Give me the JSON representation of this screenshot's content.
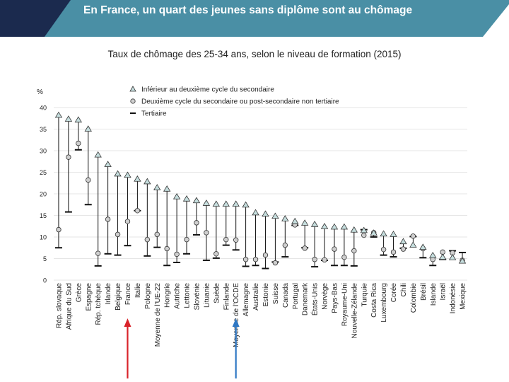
{
  "header": {
    "title": "En France, un quart des jeunes sans diplôme sont au chômage"
  },
  "colors": {
    "banner": "#4a8fa5",
    "banner_dark": "#1b2a4e",
    "triangle_fill": "#c6dede",
    "circle_fill": "#cfcfcf",
    "marker_stroke": "#333333",
    "arrow_france": "#d9232a",
    "arrow_oecd": "#2f78c4"
  },
  "chart_data": {
    "type": "scatter",
    "title": "Taux de chômage des 25-34 ans, selon le niveau de formation (2015)",
    "ylabel": "%",
    "ylim": [
      0,
      40
    ],
    "yticks": [
      0,
      5,
      10,
      15,
      20,
      25,
      30,
      35,
      40
    ],
    "legend": [
      "Inférieur au deuxième cycle du secondaire",
      "Deuxième cycle du secondaire ou post-secondaire non tertiaire",
      "Tertiaire"
    ],
    "highlighted": [
      "France",
      "Moyenne de l'OCDE"
    ],
    "categories": [
      "Rép. slovaque",
      "Afrique du Sud",
      "Grèce",
      "Espagne",
      "Rép. tchèque",
      "Irlande",
      "Belgique",
      "France",
      "Italie",
      "Pologne",
      "Moyenne de l'UE-22",
      "Hongrie",
      "Autriche",
      "Lettonie",
      "Slovénie",
      "Lituanie",
      "Suède",
      "Finlande",
      "Moyenne de l'OCDE",
      "Allemagne",
      "Australie",
      "Estonie",
      "Suisse",
      "Canada",
      "Portugal",
      "Danemark",
      "États-Unis",
      "Norvège",
      "Pays-Bas",
      "Royaume-Uni",
      "Nouvelle-Zélande",
      "Turquie",
      "Costa Rica",
      "Luxembourg",
      "Corée",
      "Chili",
      "Colombie",
      "Brésil",
      "Islande",
      "Israël",
      "Indonésie",
      "Mexique"
    ],
    "series": [
      {
        "name": "Inférieur au deuxième cycle du secondaire",
        "marker": "triangle",
        "values": [
          38.2,
          37.3,
          37.1,
          35,
          29,
          26.8,
          24.6,
          24.3,
          23.4,
          22.8,
          21.4,
          21.1,
          19.3,
          18.8,
          18.4,
          17.8,
          17.6,
          17.6,
          17.6,
          17.4,
          15.6,
          15.3,
          14.8,
          14.2,
          13.6,
          13.2,
          12.9,
          12.4,
          12.3,
          12.3,
          11.6,
          11.5,
          10.9,
          10.7,
          10.6,
          8.9,
          8.1,
          7.6,
          5.7,
          5.3,
          5.2,
          4.4
        ]
      },
      {
        "name": "Deuxième cycle du secondaire ou post-secondaire non tertiaire",
        "marker": "circle",
        "values": [
          11.7,
          28.5,
          31.7,
          23.2,
          6.2,
          14.1,
          10.6,
          13.6,
          16.1,
          9.4,
          10.6,
          7.3,
          6,
          9.4,
          13.3,
          11,
          6.1,
          9.4,
          9.3,
          4.8,
          4.8,
          5.8,
          4,
          8.1,
          12.8,
          7.4,
          4.8,
          4.7,
          7.2,
          5.3,
          6.8,
          10.4,
          11,
          7.1,
          6.5,
          7.2,
          10.2,
          7.3,
          4.8,
          6.5,
          6.3,
          4.6
        ]
      },
      {
        "name": "Tertiaire",
        "marker": "dash",
        "values": [
          7.5,
          15.8,
          30.2,
          17.5,
          3.3,
          6.1,
          5.8,
          8,
          16.1,
          5.6,
          7.6,
          3.4,
          4.1,
          6.1,
          10.5,
          4.6,
          5.1,
          8.1,
          7,
          3.2,
          3.4,
          2.7,
          4.2,
          5.4,
          12.7,
          7.5,
          3.1,
          4.6,
          3.4,
          3.4,
          3.3,
          11.7,
          10,
          5.8,
          5.4,
          7.4,
          10.1,
          5.2,
          3.4,
          4.8,
          6.8,
          6.4
        ]
      }
    ]
  }
}
